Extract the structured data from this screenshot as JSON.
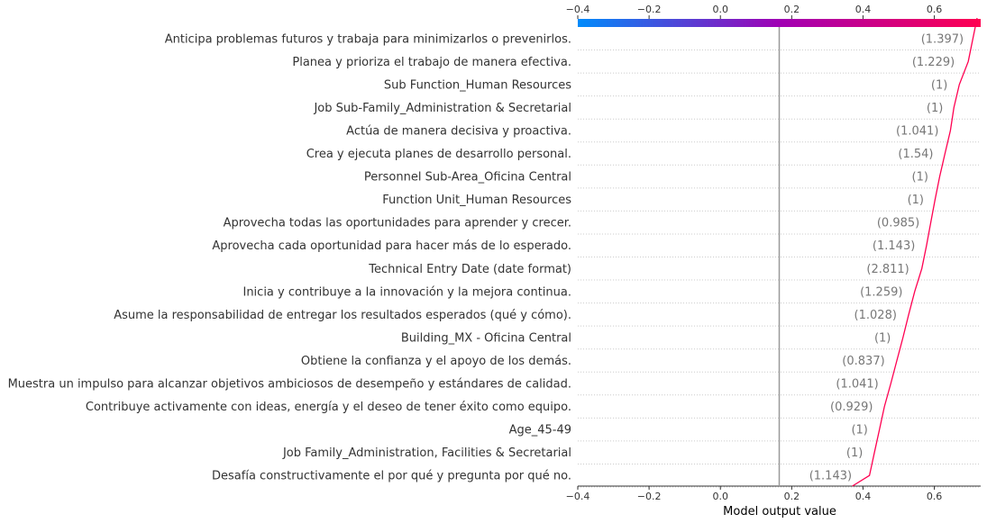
{
  "chart_data": {
    "type": "line",
    "xlabel": "Model output value",
    "xlim": [
      -0.4,
      0.73
    ],
    "x_ticks": [
      "−0.4",
      "−0.2",
      "0.0",
      "0.2",
      "0.4",
      "0.6"
    ],
    "x_tick_values": [
      -0.4,
      -0.2,
      0.0,
      0.2,
      0.4,
      0.6
    ],
    "base_value": 0.165,
    "colorbar": {
      "from_color": "#008bfb",
      "to_color": "#ff0051",
      "range": [
        -0.4,
        0.73
      ]
    },
    "line_color": "#ff0051",
    "grid": "dotted horizontal row lines",
    "features": [
      "Anticipa problemas futuros y trabaja para minimizarlos o prevenirlos.",
      "Planea y prioriza el trabajo de manera efectiva.",
      "Sub Function_Human Resources",
      "Job Sub-Family_Administration & Secretarial",
      "Actúa de manera decisiva y proactiva.",
      "Crea y ejecuta planes de desarrollo personal.",
      "Personnel Sub-Area_Oficina Central",
      "Function Unit_Human Resources",
      "Aprovecha todas las oportunidades para aprender y crecer.",
      "Aprovecha cada oportunidad para hacer más de lo esperado.",
      "Technical Entry Date (date format)",
      "Inicia y contribuye a la innovación y la mejora continua.",
      "Asume la responsabilidad de entregar los resultados esperados (qué y cómo).",
      "Building_MX - Oficina Central",
      "Obtiene la confianza y el apoyo de los demás.",
      "Muestra un impulso para alcanzar objetivos ambiciosos de desempeño y estándares de calidad.",
      "Contribuye activamente con ideas, energía y el deseo de tener éxito como equipo.",
      "Age_45-49",
      "Job Family_Administration, Facilities & Secretarial",
      "Desafía constructivamente el por qué y pregunta por qué no."
    ],
    "feature_values": [
      "(1.397)",
      "(1.229)",
      "(1)",
      "(1)",
      "(1.041)",
      "(1.54)",
      "(1)",
      "(1)",
      "(0.985)",
      "(1.143)",
      "(2.811)",
      "(1.259)",
      "(1.028)",
      "(1)",
      "(0.837)",
      "(1.041)",
      "(0.929)",
      "(1)",
      "(1)",
      "(1.143)"
    ],
    "path_x": [
      0.72,
      0.695,
      0.67,
      0.655,
      0.645,
      0.63,
      0.615,
      0.602,
      0.59,
      0.578,
      0.565,
      0.545,
      0.528,
      0.512,
      0.495,
      0.478,
      0.46,
      0.446,
      0.432,
      0.418,
      0.37
    ]
  }
}
